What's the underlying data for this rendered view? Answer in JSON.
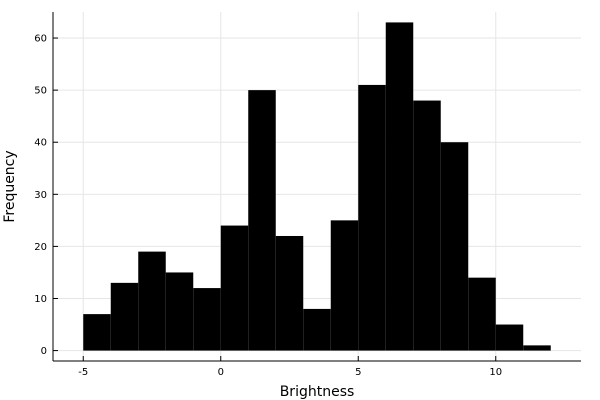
{
  "chart_data": {
    "type": "bar",
    "subtype": "histogram",
    "title": "",
    "xlabel": "Brightness",
    "ylabel": "Frequency",
    "bin_width": 1,
    "bin_edges": [
      -5,
      -4,
      -3,
      -2,
      -1,
      0,
      1,
      2,
      3,
      4,
      5,
      6,
      7,
      8,
      9,
      10,
      11,
      12
    ],
    "values": [
      7,
      13,
      19,
      15,
      12,
      24,
      50,
      22,
      8,
      25,
      51,
      63,
      48,
      40,
      14,
      5,
      1
    ],
    "xlim": [
      -6.1,
      13.1
    ],
    "ylim": [
      -2,
      65
    ],
    "xticks": [
      -5,
      0,
      5,
      10
    ],
    "yticks": [
      0,
      10,
      20,
      30,
      40,
      50,
      60
    ],
    "xtick_labels": [
      "-5",
      "0",
      "5",
      "10"
    ],
    "ytick_labels": [
      "0",
      "10",
      "20",
      "30",
      "40",
      "50",
      "60"
    ],
    "grid": true,
    "legend": "none",
    "bar_color": "#000000",
    "grid_color": "#e6e6e6"
  }
}
